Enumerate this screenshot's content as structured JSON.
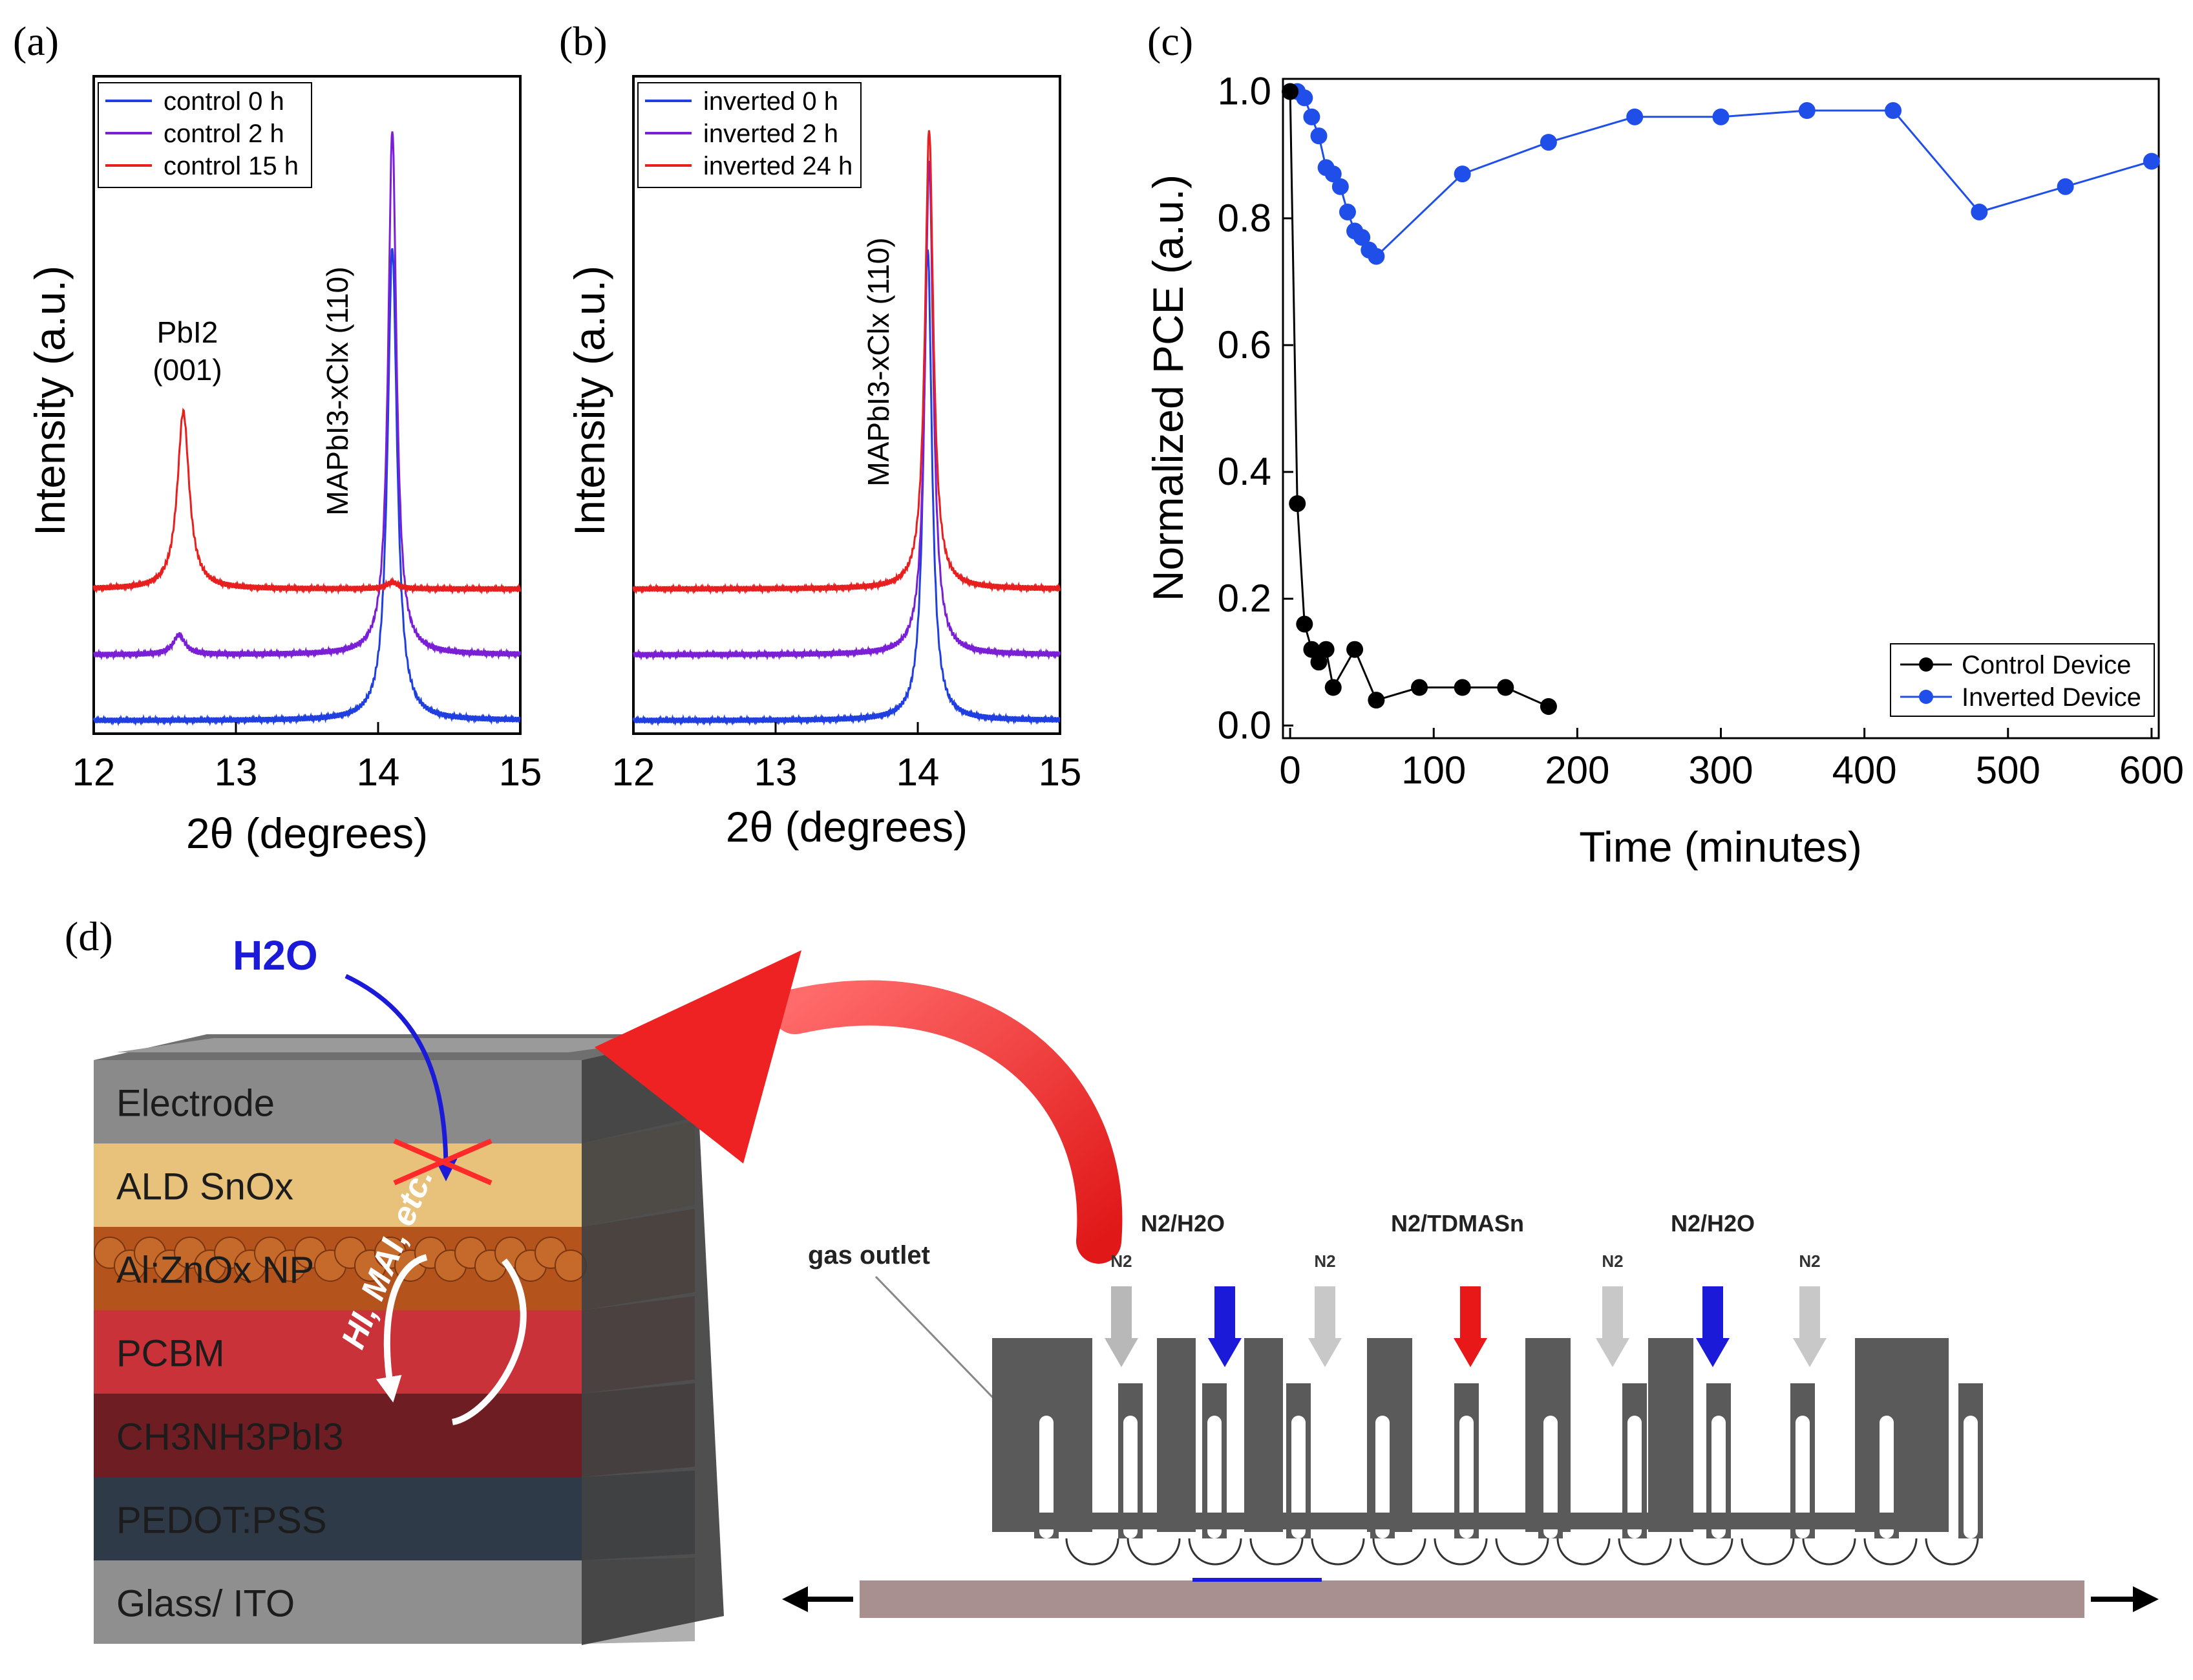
{
  "panel_labels": [
    "(a)",
    "(b)",
    "(c)",
    "(d)"
  ],
  "chart_data": [
    {
      "id": "a",
      "type": "line",
      "title": "",
      "xlabel": "2θ (degrees)",
      "ylabel": "Intensity (a.u.)",
      "xlim": [
        12,
        15
      ],
      "xticks": [
        "12",
        "13",
        "14",
        "15"
      ],
      "legend_position": "top-left",
      "series": [
        {
          "name": "control 0 h",
          "color": "#1f3fe0",
          "baseline": 0.02,
          "peaks": [
            {
              "x": 14.1,
              "height": 0.72,
              "width": 0.04
            }
          ]
        },
        {
          "name": "control 2 h",
          "color": "#7a1fd6",
          "baseline": 0.12,
          "peaks": [
            {
              "x": 14.1,
              "height": 0.8,
              "width": 0.035
            },
            {
              "x": 12.6,
              "height": 0.03,
              "width": 0.05
            }
          ]
        },
        {
          "name": "control 15 h",
          "color": "#e81f1f",
          "baseline": 0.22,
          "peaks": [
            {
              "x": 12.63,
              "height": 0.27,
              "width": 0.05
            },
            {
              "x": 14.1,
              "height": 0.01,
              "width": 0.05
            }
          ]
        }
      ],
      "annotations": [
        {
          "text": "PbI2",
          "text2": "(001)"
        },
        {
          "text": "MAPbI3-xClx (110)"
        }
      ]
    },
    {
      "id": "b",
      "type": "line",
      "title": "",
      "xlabel": "2θ (degrees)",
      "ylabel": "Intensity (a.u.)",
      "xlim": [
        12,
        15
      ],
      "xticks": [
        "12",
        "13",
        "14",
        "15"
      ],
      "legend_position": "top-left",
      "series": [
        {
          "name": "inverted 0 h",
          "color": "#1f3fe0",
          "baseline": 0.02,
          "peaks": [
            {
              "x": 14.07,
              "height": 0.72,
              "width": 0.035
            }
          ]
        },
        {
          "name": "inverted 2 h",
          "color": "#7a1fd6",
          "baseline": 0.12,
          "peaks": [
            {
              "x": 14.08,
              "height": 0.75,
              "width": 0.035
            }
          ]
        },
        {
          "name": "inverted 24 h",
          "color": "#e81f1f",
          "baseline": 0.22,
          "peaks": [
            {
              "x": 14.08,
              "height": 0.7,
              "width": 0.035
            }
          ]
        }
      ],
      "annotations": [
        {
          "text": "MAPbI3-xClx (110)"
        }
      ]
    },
    {
      "id": "c",
      "type": "line",
      "title": "",
      "xlabel": "Time (minutes)",
      "ylabel": "Normalized PCE (a.u.)",
      "xlim": [
        -5,
        605
      ],
      "ylim": [
        -0.02,
        1.02
      ],
      "xticks": [
        0,
        100,
        200,
        300,
        400,
        500,
        600
      ],
      "yticks": [
        "0.0",
        "0.2",
        "0.4",
        "0.6",
        "0.8",
        "1.0"
      ],
      "legend_position": "bottom-right",
      "series": [
        {
          "name": "Control Device",
          "color": "#000000",
          "x": [
            0,
            5,
            10,
            15,
            20,
            25,
            30,
            45,
            60,
            90,
            120,
            150,
            180
          ],
          "y": [
            1.0,
            0.35,
            0.16,
            0.12,
            0.1,
            0.12,
            0.06,
            0.12,
            0.04,
            0.06,
            0.06,
            0.06,
            0.03
          ]
        },
        {
          "name": "Inverted Device",
          "color": "#1f4fe8",
          "x": [
            0,
            5,
            10,
            15,
            20,
            25,
            30,
            35,
            40,
            45,
            50,
            55,
            60,
            120,
            180,
            240,
            300,
            360,
            420,
            480,
            540,
            600
          ],
          "y": [
            1.0,
            1.0,
            0.99,
            0.96,
            0.93,
            0.88,
            0.87,
            0.85,
            0.81,
            0.78,
            0.77,
            0.75,
            0.74,
            0.87,
            0.92,
            0.96,
            0.96,
            0.97,
            0.97,
            0.81,
            0.85,
            0.89
          ]
        }
      ]
    }
  ],
  "schematic": {
    "h2o_label": "H2O",
    "layers": [
      "Electrode",
      "ALD SnOx",
      "Al:ZnOx NP",
      "PCBM",
      "CH3NH3PbI3",
      "PEDOT:PSS",
      "Glass/ ITO"
    ],
    "layer_colors": [
      "#8a8a8a",
      "#e8c27a",
      "#b4541c",
      "#c83238",
      "#6e1d23",
      "#2e3a47",
      "#8f8f8f"
    ],
    "curl_label": "HI, MAI, etc.",
    "gas_outlet_label": "gas outlet",
    "n2_label": "N2",
    "gas_labels": [
      "N2/H2O",
      "N2/TDMASn",
      "N2/H2O"
    ]
  }
}
